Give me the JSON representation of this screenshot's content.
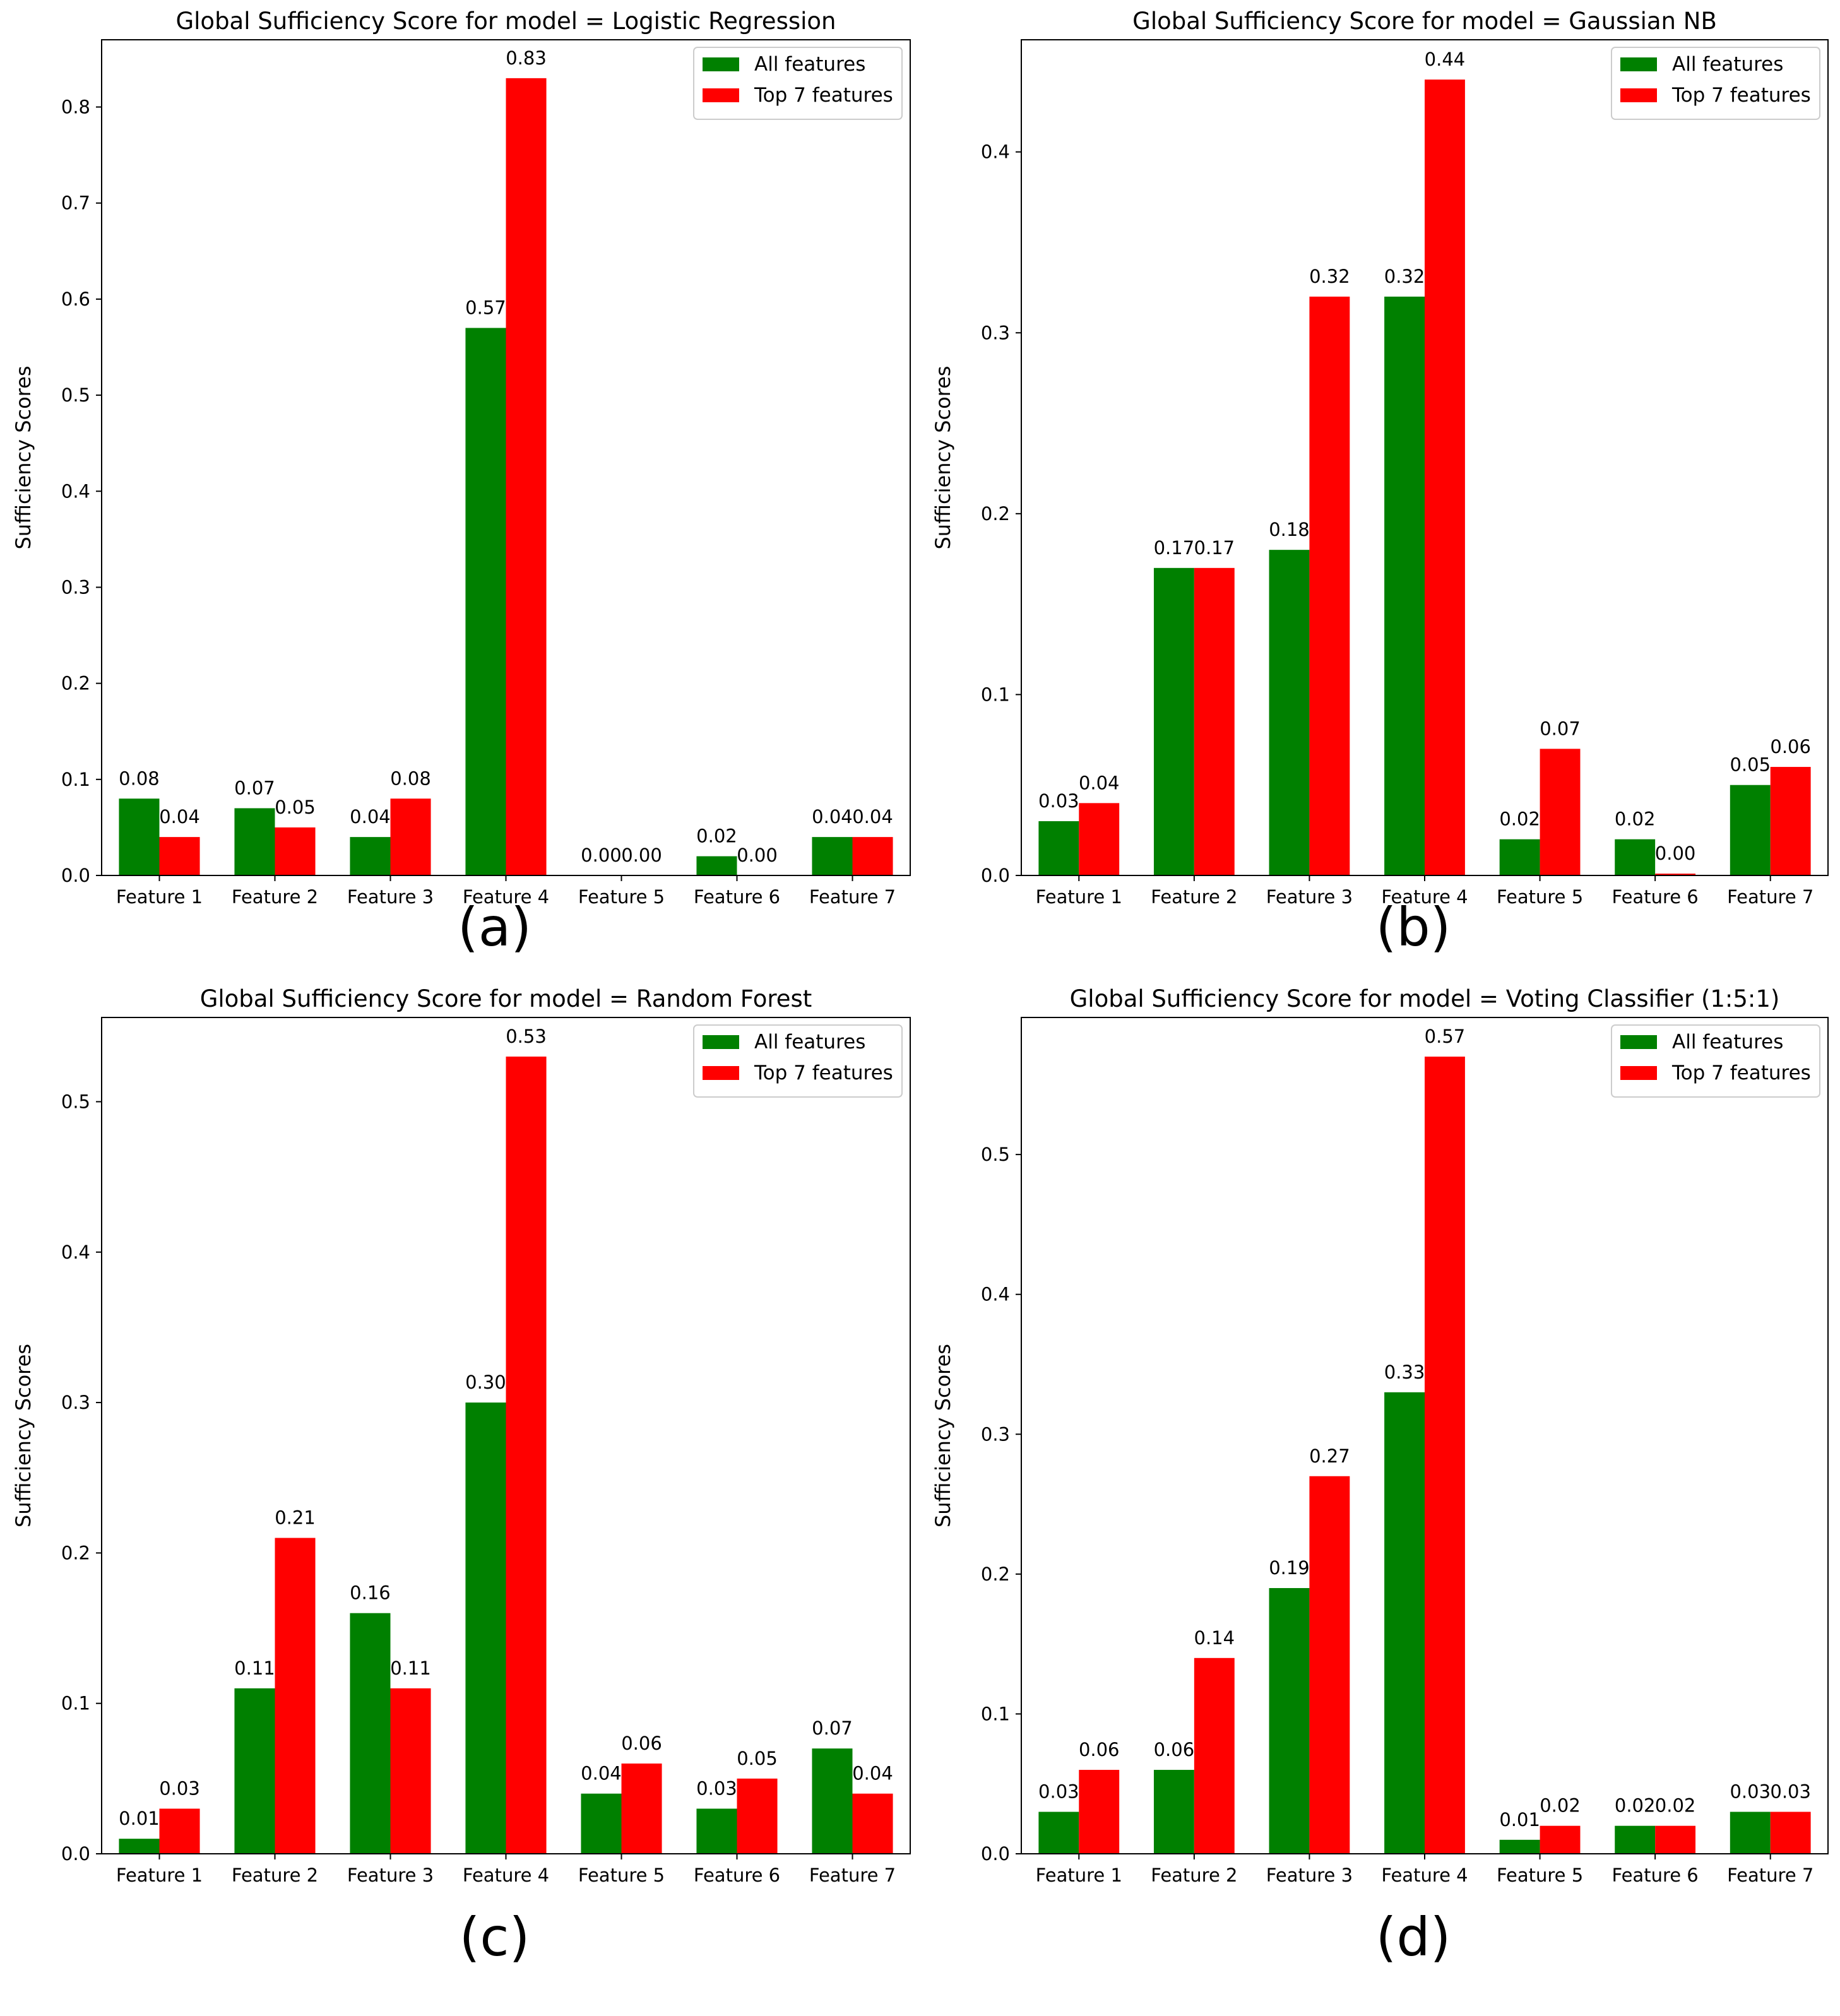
{
  "chart_data": [
    {
      "type": "bar",
      "title": "Global Sufficiency Score for model = Logistic Regression",
      "panel_label": "(a)",
      "xlabel": "",
      "ylabel": "Sufficiency Scores",
      "ylim": [
        0,
        0.87
      ],
      "yticks": [
        "0.0",
        "0.1",
        "0.2",
        "0.3",
        "0.4",
        "0.5",
        "0.6",
        "0.7",
        "0.8"
      ],
      "tick_step": 0.1,
      "categories": [
        "Feature 1",
        "Feature 2",
        "Feature 3",
        "Feature 4",
        "Feature 5",
        "Feature 6",
        "Feature 7"
      ],
      "series": [
        {
          "name": "All features",
          "color": "#008000",
          "values": [
            0.08,
            0.07,
            0.04,
            0.57,
            0.0,
            0.02,
            0.04
          ],
          "labels": [
            "0.08",
            "0.07",
            "0.04",
            "0.57",
            "0.00",
            "0.02",
            "0.04"
          ]
        },
        {
          "name": "Top 7 features",
          "color": "#ff0000",
          "values": [
            0.04,
            0.05,
            0.08,
            0.83,
            0.0,
            0.0,
            0.04
          ],
          "labels": [
            "0.04",
            "0.05",
            "0.08",
            "0.83",
            "0.00",
            "0.00",
            "0.04"
          ]
        }
      ],
      "legend_position": "upper right"
    },
    {
      "type": "bar",
      "title": "Global Sufficiency Score for model = Gaussian NB",
      "panel_label": "(b)",
      "xlabel": "",
      "ylabel": "Sufficiency Scores",
      "ylim": [
        0,
        0.462
      ],
      "yticks": [
        "0.0",
        "0.1",
        "0.2",
        "0.3",
        "0.4"
      ],
      "tick_step": 0.1,
      "categories": [
        "Feature 1",
        "Feature 2",
        "Feature 3",
        "Feature 4",
        "Feature 5",
        "Feature 6",
        "Feature 7"
      ],
      "series": [
        {
          "name": "All features",
          "color": "#008000",
          "values": [
            0.03,
            0.17,
            0.18,
            0.32,
            0.02,
            0.02,
            0.05
          ],
          "labels": [
            "0.03",
            "0.17",
            "0.18",
            "0.32",
            "0.02",
            "0.02",
            "0.05"
          ]
        },
        {
          "name": "Top 7 features",
          "color": "#ff0000",
          "values": [
            0.04,
            0.17,
            0.32,
            0.44,
            0.07,
            0.001,
            0.06
          ],
          "labels": [
            "0.04",
            "0.17",
            "0.32",
            "0.44",
            "0.07",
            "0.00",
            "0.06"
          ]
        }
      ],
      "legend_position": "upper right"
    },
    {
      "type": "bar",
      "title": "Global Sufficiency Score for model = Random Forest",
      "panel_label": "(c)",
      "xlabel": "",
      "ylabel": "Sufficiency Scores",
      "ylim": [
        0,
        0.556
      ],
      "yticks": [
        "0.0",
        "0.1",
        "0.2",
        "0.3",
        "0.4",
        "0.5"
      ],
      "tick_step": 0.1,
      "categories": [
        "Feature 1",
        "Feature 2",
        "Feature 3",
        "Feature 4",
        "Feature 5",
        "Feature 6",
        "Feature 7"
      ],
      "series": [
        {
          "name": "All features",
          "color": "#008000",
          "values": [
            0.01,
            0.11,
            0.16,
            0.3,
            0.04,
            0.03,
            0.07
          ],
          "labels": [
            "0.01",
            "0.11",
            "0.16",
            "0.30",
            "0.04",
            "0.03",
            "0.07"
          ]
        },
        {
          "name": "Top 7 features",
          "color": "#ff0000",
          "values": [
            0.03,
            0.21,
            0.11,
            0.53,
            0.06,
            0.05,
            0.04
          ],
          "labels": [
            "0.03",
            "0.21",
            "0.11",
            "0.53",
            "0.06",
            "0.05",
            "0.04"
          ]
        }
      ],
      "legend_position": "upper right"
    },
    {
      "type": "bar",
      "title": "Global Sufficiency Score for model = Voting Classifier (1:5:1)",
      "panel_label": "(d)",
      "xlabel": "",
      "ylabel": "Sufficiency Scores",
      "ylim": [
        0,
        0.598
      ],
      "yticks": [
        "0.0",
        "0.1",
        "0.2",
        "0.3",
        "0.4",
        "0.5"
      ],
      "tick_step": 0.1,
      "categories": [
        "Feature 1",
        "Feature 2",
        "Feature 3",
        "Feature 4",
        "Feature 5",
        "Feature 6",
        "Feature 7"
      ],
      "series": [
        {
          "name": "All features",
          "color": "#008000",
          "values": [
            0.03,
            0.06,
            0.19,
            0.33,
            0.01,
            0.02,
            0.03
          ],
          "labels": [
            "0.03",
            "0.06",
            "0.19",
            "0.33",
            "0.01",
            "0.02",
            "0.03"
          ]
        },
        {
          "name": "Top 7 features",
          "color": "#ff0000",
          "values": [
            0.06,
            0.14,
            0.27,
            0.57,
            0.02,
            0.02,
            0.03
          ],
          "labels": [
            "0.06",
            "0.14",
            "0.27",
            "0.57",
            "0.02",
            "0.02",
            "0.03"
          ]
        }
      ],
      "legend_position": "upper right"
    }
  ]
}
